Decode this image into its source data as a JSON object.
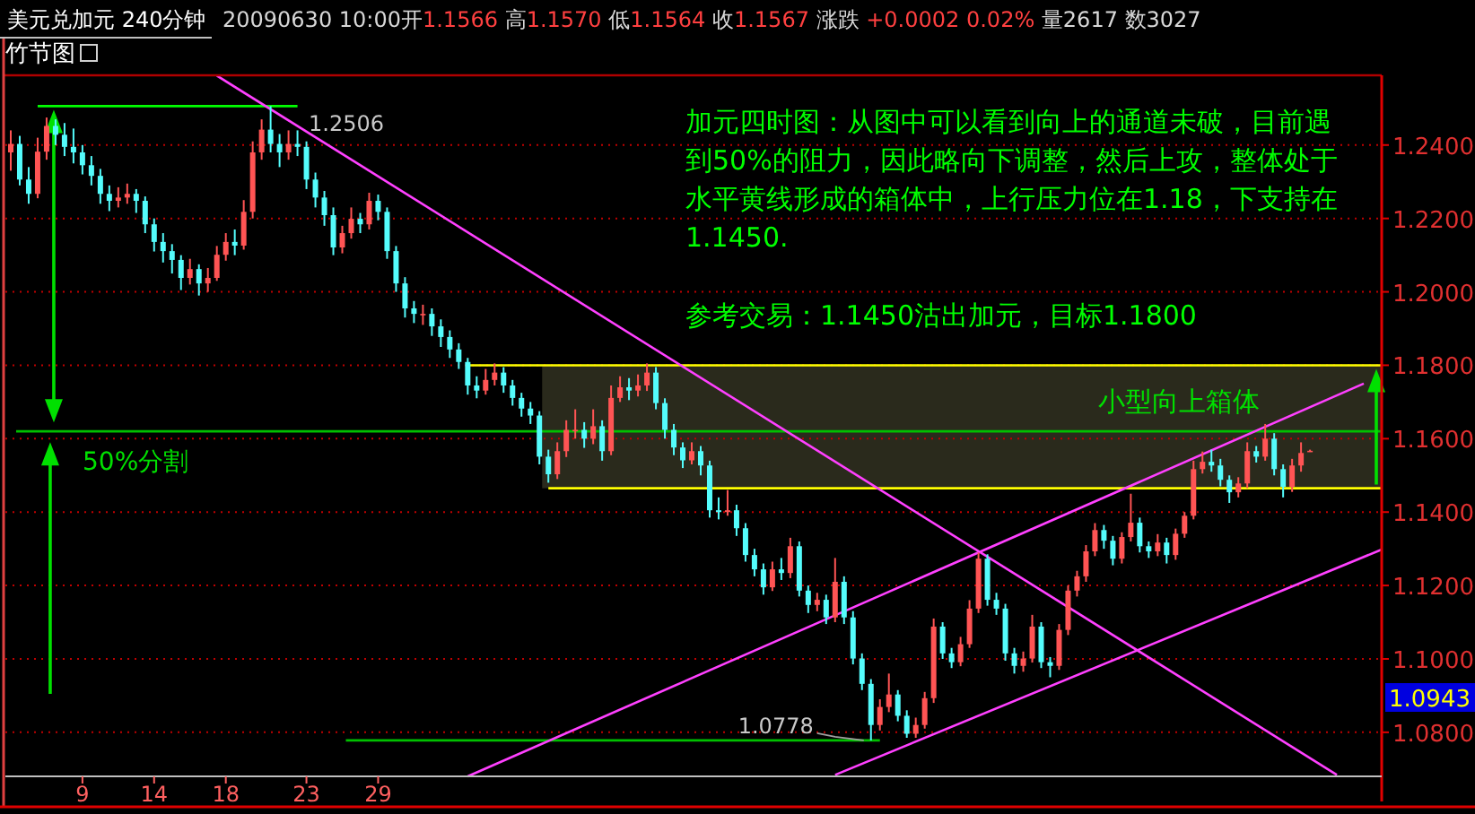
{
  "chart_data": {
    "type": "candlestick",
    "title": "美元兑加元 240分钟",
    "subtitle": "20090630 10:00开1.1566 高1.1570 低1.1564 收1.1567 涨跌 +0.0002 0.02% 量2617 数3027",
    "annotations": [
      "竹节图",
      "加元四时图：从图中可以看到向上的通道未破，目前遇到50%的阻力，因此略向下调整，然后上攻，整体处于水平黄线形成的箱体中，上行压力位在1.18，下支持在1.1450.",
      "参考交易：1.1450沽出加元，目标1.1800",
      "50%分割",
      "小型向上箱体",
      "1.2506",
      {
        "text": "1.0778",
        "y": 1.0778
      },
      "1.0943"
    ],
    "categories": [
      null,
      null,
      null,
      null,
      null,
      null,
      null,
      null,
      "9",
      null,
      null,
      null,
      null,
      null,
      null,
      null,
      "14",
      null,
      null,
      null,
      null,
      null,
      null,
      null,
      "18",
      null,
      null,
      null,
      null,
      null,
      null,
      null,
      null,
      "23",
      null,
      null,
      null,
      null,
      null,
      null,
      null,
      "29",
      null,
      null,
      null,
      null,
      null,
      null,
      null,
      null,
      null,
      null,
      null,
      null,
      null,
      null,
      null,
      null,
      null,
      null,
      null,
      null,
      null,
      null,
      null,
      null,
      null,
      null,
      null,
      null,
      null,
      null,
      null,
      null,
      null,
      null,
      null,
      null,
      null,
      null,
      null,
      null,
      null,
      null,
      null,
      null,
      null,
      null,
      null,
      null,
      null,
      null,
      null,
      null,
      null,
      null,
      null,
      null,
      null,
      null,
      null,
      null,
      null,
      null,
      null,
      null,
      null,
      null,
      null,
      null,
      null,
      null,
      null,
      null,
      null,
      null,
      null,
      null,
      null,
      null,
      null,
      null,
      null,
      null,
      null,
      null,
      null,
      null,
      null,
      null,
      null,
      null,
      null,
      null,
      null,
      null,
      null,
      null,
      null,
      null,
      null,
      null,
      null,
      null,
      null,
      null,
      null,
      null,
      null,
      null,
      null,
      null,
      null,
      null
    ],
    "ohlc": [
      [
        1.238,
        1.244,
        1.233,
        1.2403
      ],
      [
        1.2403,
        1.2425,
        1.229,
        1.2306
      ],
      [
        1.2306,
        1.234,
        1.224,
        1.2267
      ],
      [
        1.2267,
        1.242,
        1.2255,
        1.2382
      ],
      [
        1.2382,
        1.2475,
        1.236,
        1.2452
      ],
      [
        1.2452,
        1.247,
        1.24,
        1.2428
      ],
      [
        1.2428,
        1.246,
        1.237,
        1.2395
      ],
      [
        1.2395,
        1.2445,
        1.235,
        1.238
      ],
      [
        1.238,
        1.24,
        1.232,
        1.2345
      ],
      [
        1.2345,
        1.237,
        1.229,
        1.2316
      ],
      [
        1.2316,
        1.2335,
        1.224,
        1.2267
      ],
      [
        1.2267,
        1.229,
        1.222,
        1.2248
      ],
      [
        1.2248,
        1.2285,
        1.223,
        1.2257
      ],
      [
        1.2257,
        1.2295,
        1.224,
        1.2267
      ],
      [
        1.2267,
        1.228,
        1.2215,
        1.2248
      ],
      [
        1.2248,
        1.226,
        1.216,
        1.2184
      ],
      [
        1.2184,
        1.22,
        1.211,
        1.2136
      ],
      [
        1.2136,
        1.216,
        1.208,
        1.2111
      ],
      [
        1.2111,
        1.213,
        1.205,
        1.2087
      ],
      [
        1.2087,
        1.21,
        1.2005,
        1.2038
      ],
      [
        1.2038,
        1.209,
        1.202,
        1.2062
      ],
      [
        1.2062,
        1.2075,
        1.199,
        1.2023
      ],
      [
        1.2023,
        1.2065,
        1.2,
        1.2038
      ],
      [
        1.2038,
        1.2125,
        1.203,
        1.2101
      ],
      [
        1.2101,
        1.216,
        1.2085,
        1.2136
      ],
      [
        1.2136,
        1.217,
        1.21,
        1.2126
      ],
      [
        1.2126,
        1.225,
        1.2115,
        1.2218
      ],
      [
        1.2218,
        1.241,
        1.22,
        1.238
      ],
      [
        1.238,
        1.247,
        1.236,
        1.2442
      ],
      [
        1.2442,
        1.2506,
        1.238,
        1.2403
      ],
      [
        1.2403,
        1.243,
        1.234,
        1.238
      ],
      [
        1.238,
        1.244,
        1.236,
        1.2403
      ],
      [
        1.2403,
        1.244,
        1.237,
        1.2395
      ],
      [
        1.2395,
        1.241,
        1.228,
        1.2306
      ],
      [
        1.2306,
        1.2325,
        1.223,
        1.2257
      ],
      [
        1.2257,
        1.2275,
        1.218,
        1.2209
      ],
      [
        1.2209,
        1.223,
        1.21,
        1.2121
      ],
      [
        1.2121,
        1.218,
        1.2105,
        1.216
      ],
      [
        1.216,
        1.223,
        1.2145,
        1.2199
      ],
      [
        1.2199,
        1.2215,
        1.216,
        1.2184
      ],
      [
        1.2184,
        1.227,
        1.217,
        1.2248
      ],
      [
        1.2248,
        1.2265,
        1.2195,
        1.2218
      ],
      [
        1.2218,
        1.223,
        1.209,
        1.2111
      ],
      [
        1.2111,
        1.2125,
        1.2,
        1.2023
      ],
      [
        1.2023,
        1.204,
        1.193,
        1.1955
      ],
      [
        1.1955,
        1.1975,
        1.1915,
        1.194
      ],
      [
        1.194,
        1.1965,
        1.191,
        1.194
      ],
      [
        1.194,
        1.1955,
        1.188,
        1.1906
      ],
      [
        1.1906,
        1.1925,
        1.185,
        1.1877
      ],
      [
        1.1877,
        1.1895,
        1.182,
        1.1843
      ],
      [
        1.1843,
        1.186,
        1.179,
        1.1809
      ],
      [
        1.1809,
        1.182,
        1.172,
        1.1745
      ],
      [
        1.1745,
        1.177,
        1.171,
        1.1731
      ],
      [
        1.1731,
        1.179,
        1.172,
        1.176
      ],
      [
        1.176,
        1.1805,
        1.1745,
        1.178
      ],
      [
        1.178,
        1.1795,
        1.1725,
        1.1745
      ],
      [
        1.1745,
        1.176,
        1.169,
        1.1711
      ],
      [
        1.1711,
        1.1725,
        1.166,
        1.1682
      ],
      [
        1.1682,
        1.17,
        1.164,
        1.1663
      ],
      [
        1.1663,
        1.1675,
        1.153,
        1.1551
      ],
      [
        1.1551,
        1.157,
        1.148,
        1.1503
      ],
      [
        1.1503,
        1.159,
        1.149,
        1.1566
      ],
      [
        1.1566,
        1.165,
        1.155,
        1.1624
      ],
      [
        1.1624,
        1.168,
        1.16,
        1.1624
      ],
      [
        1.1624,
        1.1645,
        1.1575,
        1.16
      ],
      [
        1.16,
        1.168,
        1.1585,
        1.1634
      ],
      [
        1.1634,
        1.165,
        1.154,
        1.1566
      ],
      [
        1.1566,
        1.1745,
        1.1555,
        1.1711
      ],
      [
        1.1711,
        1.177,
        1.17,
        1.174
      ],
      [
        1.174,
        1.1765,
        1.1705,
        1.1731
      ],
      [
        1.1731,
        1.1775,
        1.1715,
        1.1745
      ],
      [
        1.1745,
        1.1805,
        1.173,
        1.178
      ],
      [
        1.178,
        1.1795,
        1.168,
        1.1697
      ],
      [
        1.1697,
        1.171,
        1.16,
        1.1624
      ],
      [
        1.1624,
        1.164,
        1.1555,
        1.1576
      ],
      [
        1.1576,
        1.159,
        1.152,
        1.1541
      ],
      [
        1.1541,
        1.159,
        1.153,
        1.1566
      ],
      [
        1.1566,
        1.158,
        1.15,
        1.1527
      ],
      [
        1.1527,
        1.154,
        1.1385,
        1.1405
      ],
      [
        1.1405,
        1.144,
        1.138,
        1.14
      ],
      [
        1.14,
        1.146,
        1.139,
        1.1405
      ],
      [
        1.1405,
        1.142,
        1.1335,
        1.1356
      ],
      [
        1.1356,
        1.137,
        1.1265,
        1.1283
      ],
      [
        1.1283,
        1.13,
        1.1225,
        1.1244
      ],
      [
        1.1244,
        1.126,
        1.1175,
        1.1195
      ],
      [
        1.1195,
        1.1265,
        1.1185,
        1.1244
      ],
      [
        1.1244,
        1.1275,
        1.1215,
        1.1234
      ],
      [
        1.1234,
        1.133,
        1.122,
        1.1307
      ],
      [
        1.1307,
        1.132,
        1.117,
        1.1186
      ],
      [
        1.1186,
        1.12,
        1.1125,
        1.1147
      ],
      [
        1.1147,
        1.118,
        1.113,
        1.1161
      ],
      [
        1.1161,
        1.1175,
        1.1095,
        1.1113
      ],
      [
        1.1113,
        1.1275,
        1.11,
        1.121
      ],
      [
        1.121,
        1.1225,
        1.1095,
        1.1113
      ],
      [
        1.1113,
        1.113,
        1.0985,
        1.1001
      ],
      [
        1.1001,
        1.1015,
        1.0915,
        1.0932
      ],
      [
        1.0932,
        1.0945,
        1.0778,
        1.082
      ],
      [
        1.082,
        1.089,
        1.0805,
        1.0869
      ],
      [
        1.0869,
        1.096,
        1.0855,
        1.0903
      ],
      [
        1.0903,
        1.0915,
        1.083,
        1.0845
      ],
      [
        1.0845,
        1.086,
        1.0785,
        1.0796
      ],
      [
        1.0796,
        1.084,
        1.0785,
        1.082
      ],
      [
        1.082,
        1.091,
        1.081,
        1.0893
      ],
      [
        1.0893,
        1.111,
        1.088,
        1.1088
      ],
      [
        1.1088,
        1.11,
        1.1,
        1.1015
      ],
      [
        1.1015,
        1.103,
        1.0975,
        1.0991
      ],
      [
        1.0991,
        1.106,
        1.098,
        1.104
      ],
      [
        1.104,
        1.116,
        1.103,
        1.1137
      ],
      [
        1.1137,
        1.129,
        1.1125,
        1.1273
      ],
      [
        1.1273,
        1.1285,
        1.1145,
        1.1161
      ],
      [
        1.1161,
        1.118,
        1.112,
        1.1137
      ],
      [
        1.1137,
        1.115,
        1.0995,
        1.1015
      ],
      [
        1.1015,
        1.103,
        1.096,
        1.0981
      ],
      [
        1.0981,
        1.102,
        1.0965,
        1.1001
      ],
      [
        1.1001,
        1.112,
        1.099,
        1.1088
      ],
      [
        1.1088,
        1.11,
        1.0975,
        1.0991
      ],
      [
        1.0991,
        1.1005,
        1.095,
        1.0981
      ],
      [
        1.0981,
        1.1095,
        1.097,
        1.1079
      ],
      [
        1.1079,
        1.12,
        1.1065,
        1.1186
      ],
      [
        1.1186,
        1.124,
        1.117,
        1.1225
      ],
      [
        1.1225,
        1.131,
        1.121,
        1.1293
      ],
      [
        1.1293,
        1.137,
        1.128,
        1.1351
      ],
      [
        1.1351,
        1.1365,
        1.13,
        1.1322
      ],
      [
        1.1322,
        1.1335,
        1.1255,
        1.1273
      ],
      [
        1.1273,
        1.1345,
        1.126,
        1.1332
      ],
      [
        1.1332,
        1.145,
        1.132,
        1.1371
      ],
      [
        1.1371,
        1.1385,
        1.129,
        1.1307
      ],
      [
        1.1307,
        1.132,
        1.1275,
        1.1293
      ],
      [
        1.1293,
        1.134,
        1.128,
        1.1317
      ],
      [
        1.1317,
        1.133,
        1.126,
        1.1283
      ],
      [
        1.1283,
        1.1355,
        1.127,
        1.1341
      ],
      [
        1.1341,
        1.14,
        1.133,
        1.139
      ],
      [
        1.139,
        1.154,
        1.138,
        1.1517
      ],
      [
        1.1517,
        1.1565,
        1.1505,
        1.1537
      ],
      [
        1.1537,
        1.157,
        1.151,
        1.1527
      ],
      [
        1.1527,
        1.1545,
        1.147,
        1.1488
      ],
      [
        1.1488,
        1.15,
        1.1425,
        1.1454
      ],
      [
        1.1454,
        1.1495,
        1.144,
        1.1478
      ],
      [
        1.1478,
        1.159,
        1.1465,
        1.1566
      ],
      [
        1.1566,
        1.158,
        1.1535,
        1.1551
      ],
      [
        1.1551,
        1.164,
        1.154,
        1.16
      ],
      [
        1.16,
        1.1615,
        1.15,
        1.1517
      ],
      [
        1.1517,
        1.153,
        1.144,
        1.1469
      ],
      [
        1.1469,
        1.1545,
        1.1455,
        1.1527
      ],
      [
        1.1527,
        1.159,
        1.151,
        1.1561
      ],
      [
        1.1566,
        1.157,
        1.1564,
        1.1567
      ],
      null,
      null,
      null,
      null,
      null,
      null,
      null,
      null
    ],
    "series": [
      {
        "type": "line",
        "color": "#ff40ff",
        "values": [
          null,
          null,
          null,
          null,
          null,
          null,
          null,
          null,
          null,
          null,
          null,
          null,
          null,
          null,
          null,
          null,
          null,
          null,
          null,
          null,
          null,
          null,
          null,
          1.2589,
          null,
          null,
          null,
          null,
          null,
          null,
          null,
          null,
          null,
          null,
          null,
          null,
          null,
          null,
          null,
          null,
          null,
          null,
          null,
          null,
          null,
          null,
          null,
          null,
          null,
          null,
          null,
          null,
          null,
          null,
          null,
          null,
          null,
          null,
          null,
          null,
          null,
          null,
          null,
          null,
          null,
          null,
          null,
          null,
          null,
          null,
          null,
          null,
          null,
          null,
          null,
          null,
          null,
          null,
          null,
          null,
          null,
          null,
          null,
          null,
          null,
          null,
          null,
          null,
          null,
          null,
          null,
          null,
          null,
          null,
          null,
          null,
          null,
          null,
          null,
          null,
          null,
          null,
          null,
          null,
          null,
          null,
          null,
          null,
          null,
          null,
          null,
          null,
          null,
          null,
          null,
          null,
          null,
          null,
          null,
          null,
          null,
          null,
          null,
          null,
          null,
          null,
          null,
          null,
          null,
          null,
          null,
          null,
          null,
          null,
          null,
          null,
          null,
          null,
          null,
          null,
          null,
          null,
          null,
          null,
          null,
          null,
          null,
          null,
          1.0684,
          null,
          null,
          null,
          null,
          null
        ]
      },
      {
        "type": "line",
        "color": "#ff40ff",
        "values": [
          null,
          null,
          null,
          null,
          null,
          null,
          null,
          null,
          null,
          null,
          null,
          null,
          null,
          null,
          null,
          null,
          null,
          null,
          null,
          null,
          null,
          null,
          null,
          null,
          null,
          null,
          null,
          null,
          null,
          null,
          null,
          null,
          null,
          null,
          null,
          null,
          null,
          null,
          null,
          null,
          null,
          null,
          null,
          null,
          null,
          null,
          null,
          null,
          null,
          null,
          null,
          1.068,
          null,
          null,
          null,
          null,
          null,
          null,
          null,
          null,
          null,
          null,
          null,
          null,
          null,
          null,
          null,
          null,
          null,
          null,
          null,
          null,
          null,
          null,
          null,
          null,
          null,
          null,
          null,
          null,
          null,
          null,
          null,
          null,
          null,
          null,
          null,
          null,
          null,
          null,
          null,
          null,
          null,
          null,
          null,
          null,
          null,
          null,
          null,
          null,
          null,
          null,
          null,
          null,
          null,
          null,
          null,
          null,
          null,
          null,
          null,
          null,
          null,
          null,
          null,
          null,
          null,
          null,
          null,
          null,
          null,
          null,
          null,
          null,
          null,
          null,
          null,
          null,
          null,
          null,
          null,
          null,
          null,
          null,
          null,
          null,
          null,
          null,
          null,
          null,
          null,
          null,
          null,
          null,
          null,
          null,
          null,
          null,
          null,
          null,
          null,
          1.175,
          null,
          null
        ]
      },
      {
        "type": "line",
        "color": "#ff40ff",
        "values": [
          null,
          null,
          null,
          null,
          null,
          null,
          null,
          null,
          null,
          null,
          null,
          null,
          null,
          null,
          null,
          null,
          null,
          null,
          null,
          null,
          null,
          null,
          null,
          null,
          null,
          null,
          null,
          null,
          null,
          null,
          null,
          null,
          null,
          null,
          null,
          null,
          null,
          null,
          null,
          null,
          null,
          null,
          null,
          null,
          null,
          null,
          null,
          null,
          null,
          null,
          null,
          null,
          null,
          null,
          null,
          null,
          null,
          null,
          null,
          null,
          null,
          null,
          null,
          null,
          null,
          null,
          null,
          null,
          null,
          null,
          null,
          null,
          null,
          null,
          null,
          null,
          null,
          null,
          null,
          null,
          null,
          null,
          null,
          null,
          null,
          null,
          null,
          null,
          null,
          null,
          null,
          null,
          1.0684,
          null,
          null,
          null,
          null,
          null,
          null,
          null,
          null,
          null,
          null,
          null,
          null,
          null,
          null,
          null,
          null,
          null,
          null,
          null,
          null,
          null,
          null,
          null,
          null,
          null,
          null,
          null,
          null,
          null,
          null,
          null,
          null,
          null,
          null,
          null,
          null,
          null,
          null,
          null,
          null,
          null,
          null,
          null,
          null,
          null,
          null,
          null,
          null,
          null,
          null,
          null,
          null,
          null,
          null,
          null,
          null,
          null,
          null,
          null,
          null,
          1.1298
        ]
      }
    ],
    "ref_lines": [
      {
        "axis": "y",
        "value": 1.2506,
        "color": "#00ff00"
      },
      {
        "axis": "y",
        "value": 1.162,
        "color": "#00c000"
      },
      {
        "axis": "y",
        "value": 1.0778,
        "color": "#00c000"
      },
      {
        "axis": "y",
        "value": 1.18,
        "color": "#ffff00"
      },
      {
        "axis": "y",
        "value": 1.1465,
        "color": "#ffff00"
      }
    ],
    "bands": [
      {
        "axis": "y",
        "from": 1.1465,
        "to": 1.18,
        "color": "#2a2a1c"
      }
    ],
    "ylim": [
      1.068,
      1.259
    ],
    "yticks": [
      {
        "value": 1.08,
        "label": "1.0800"
      },
      {
        "value": 1.1,
        "label": "1.1000"
      },
      {
        "value": 1.12,
        "label": "1.1200"
      },
      {
        "value": 1.14,
        "label": "1.1400"
      },
      {
        "value": 1.16,
        "label": "1.1600"
      },
      {
        "value": 1.18,
        "label": "1.1800"
      },
      {
        "value": 1.2,
        "label": "1.2000"
      },
      {
        "value": 1.22,
        "label": "1.2200"
      },
      {
        "value": 1.24,
        "label": "1.2400"
      }
    ],
    "grid": "y"
  }
}
